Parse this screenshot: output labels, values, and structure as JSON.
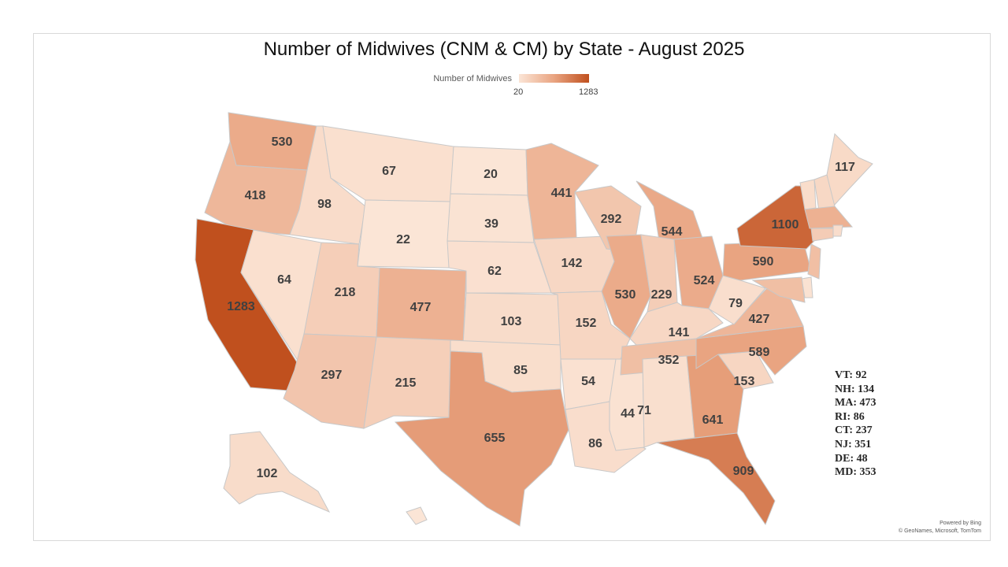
{
  "title": "Number of Midwives (CNM & CM) by State - August 2025",
  "legend": {
    "label": "Number of Midwives",
    "min": "20",
    "max": "1283",
    "min_value": 20,
    "max_value": 1283,
    "colors": [
      "#fbe5d6",
      "#e9a481",
      "#c0501e"
    ]
  },
  "states": [
    {
      "code": "WA",
      "value": 530,
      "label": "530"
    },
    {
      "code": "OR",
      "value": 418,
      "label": "418"
    },
    {
      "code": "CA",
      "value": 1283,
      "label": "1283"
    },
    {
      "code": "NV",
      "value": 64,
      "label": "64"
    },
    {
      "code": "ID",
      "value": 98,
      "label": "98"
    },
    {
      "code": "MT",
      "value": 67,
      "label": "67"
    },
    {
      "code": "WY",
      "value": 22,
      "label": "22"
    },
    {
      "code": "UT",
      "value": 218,
      "label": "218"
    },
    {
      "code": "AZ",
      "value": 297,
      "label": "297"
    },
    {
      "code": "CO",
      "value": 477,
      "label": "477"
    },
    {
      "code": "NM",
      "value": 215,
      "label": "215"
    },
    {
      "code": "ND",
      "value": 20,
      "label": "20"
    },
    {
      "code": "SD",
      "value": 39,
      "label": "39"
    },
    {
      "code": "NE",
      "value": 62,
      "label": "62"
    },
    {
      "code": "KS",
      "value": 103,
      "label": "103"
    },
    {
      "code": "OK",
      "value": 85,
      "label": "85"
    },
    {
      "code": "TX",
      "value": 655,
      "label": "655"
    },
    {
      "code": "MN",
      "value": 441,
      "label": "441"
    },
    {
      "code": "IA",
      "value": 142,
      "label": "142"
    },
    {
      "code": "MO",
      "value": 152,
      "label": "152"
    },
    {
      "code": "AR",
      "value": 54,
      "label": "54"
    },
    {
      "code": "LA",
      "value": 86,
      "label": "86"
    },
    {
      "code": "WI",
      "value": 292,
      "label": "292"
    },
    {
      "code": "IL",
      "value": 530,
      "label": "530"
    },
    {
      "code": "MS",
      "value": 44,
      "label": "44"
    },
    {
      "code": "MI",
      "value": 544,
      "label": "544"
    },
    {
      "code": "IN",
      "value": 229,
      "label": "229"
    },
    {
      "code": "OH",
      "value": 524,
      "label": "524"
    },
    {
      "code": "KY",
      "value": 141,
      "label": "141"
    },
    {
      "code": "TN",
      "value": 352,
      "label": "352"
    },
    {
      "code": "AL",
      "value": 71,
      "label": "71"
    },
    {
      "code": "GA",
      "value": 641,
      "label": "641"
    },
    {
      "code": "FL",
      "value": 909,
      "label": "909"
    },
    {
      "code": "SC",
      "value": 153,
      "label": "153"
    },
    {
      "code": "NC",
      "value": 589,
      "label": "589"
    },
    {
      "code": "VA",
      "value": 427,
      "label": "427"
    },
    {
      "code": "WV",
      "value": 79,
      "label": "79"
    },
    {
      "code": "PA",
      "value": 590,
      "label": "590"
    },
    {
      "code": "NY",
      "value": 1100,
      "label": "1100"
    },
    {
      "code": "ME",
      "value": 117,
      "label": "117"
    },
    {
      "code": "VT",
      "value": 92
    },
    {
      "code": "NH",
      "value": 134
    },
    {
      "code": "MA",
      "value": 473
    },
    {
      "code": "RI",
      "value": 86
    },
    {
      "code": "CT",
      "value": 237
    },
    {
      "code": "NJ",
      "value": 351
    },
    {
      "code": "DE",
      "value": 48
    },
    {
      "code": "MD",
      "value": 353
    },
    {
      "code": "AK",
      "value": 102,
      "label": "102"
    },
    {
      "code": "HI"
    }
  ],
  "notes": [
    "VT: 92",
    "NH: 134",
    "MA: 473",
    "RI: 86",
    "CT: 237",
    "NJ: 351",
    "DE: 48",
    "MD: 353"
  ],
  "credit": [
    "Powered by Bing",
    "© GeoNames, Microsoft, TomTom"
  ]
}
